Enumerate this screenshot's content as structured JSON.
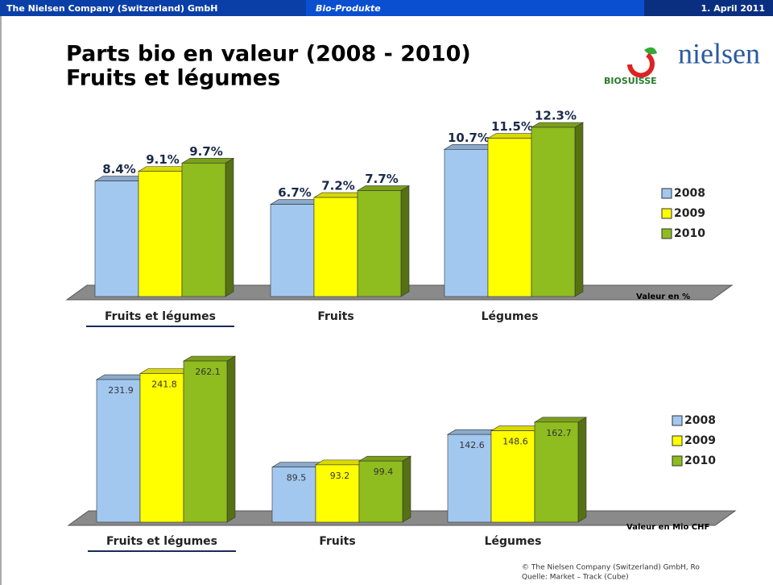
{
  "header": {
    "company": "The Nielsen Company (Switzerland) GmbH",
    "section": "Bio-Produkte",
    "date": "1. April 2011"
  },
  "title": [
    "Parts bio en valeur (2008 - 2010)",
    "Fruits et légumes"
  ],
  "logos": [
    "BIOSUISSE",
    "nielsen"
  ],
  "footer": [
    "© The Nielsen Company (Switzerland) GmbH, Ro",
    "Quelle: Market – Track (Cube)"
  ],
  "chart_data": [
    {
      "type": "bar",
      "y_label": "Valeur en %",
      "categories": [
        "Fruits et légumes",
        "Fruits",
        "Légumes"
      ],
      "series": [
        {
          "name": "2008",
          "color": "#a3c8f0",
          "values": [
            8.4,
            6.7,
            10.7
          ],
          "value_labels": [
            "8.4%",
            "6.7%",
            "10.7%"
          ]
        },
        {
          "name": "2009",
          "color": "#ffff00",
          "values": [
            9.1,
            7.2,
            11.5
          ],
          "value_labels": [
            "9.1%",
            "7.2%",
            "11.5%"
          ]
        },
        {
          "name": "2010",
          "color": "#8fbc1f",
          "values": [
            9.7,
            7.7,
            12.3
          ],
          "value_labels": [
            "9.7%",
            "7.7%",
            "12.3%"
          ]
        }
      ]
    },
    {
      "type": "bar",
      "y_label": "Valeur en Mio CHF",
      "categories": [
        "Fruits et légumes",
        "Fruits",
        "Légumes"
      ],
      "series": [
        {
          "name": "2008",
          "color": "#a3c8f0",
          "values": [
            231.9,
            89.5,
            142.6
          ]
        },
        {
          "name": "2009",
          "color": "#ffff00",
          "values": [
            241.8,
            93.2,
            148.6
          ]
        },
        {
          "name": "2010",
          "color": "#8fbc1f",
          "values": [
            262.1,
            99.4,
            162.7
          ]
        }
      ]
    }
  ]
}
